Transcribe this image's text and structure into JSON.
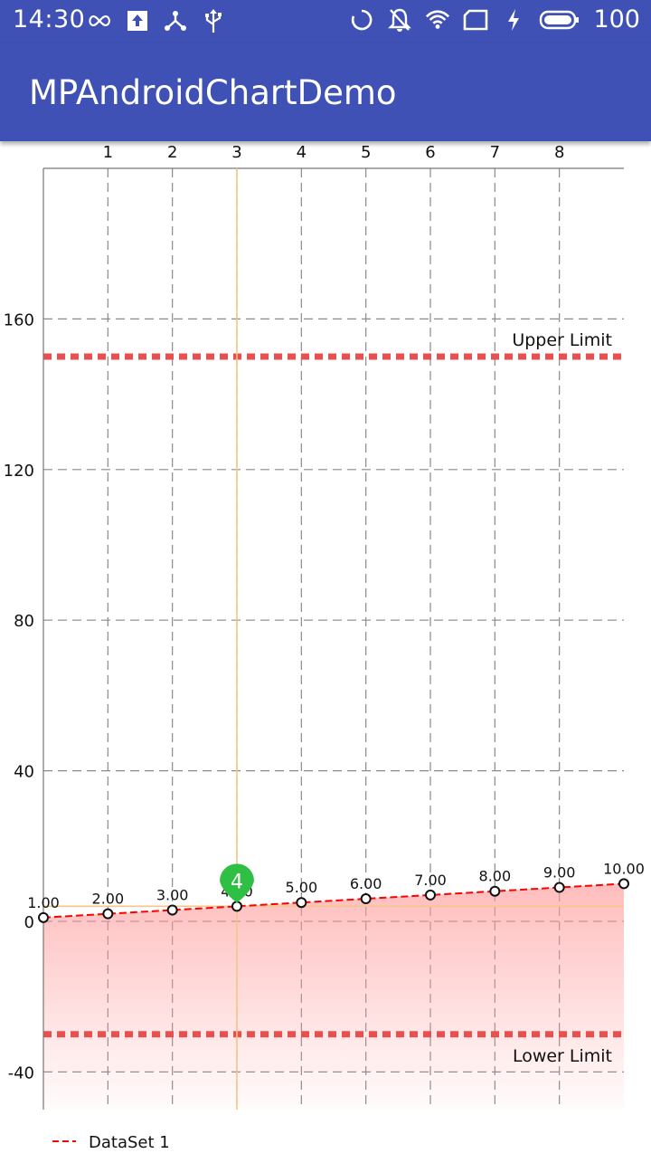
{
  "status_bar": {
    "time": "14:30",
    "battery_level": "100",
    "left_icons": [
      "infinity-icon",
      "upload-icon",
      "share-network-icon",
      "usb-icon"
    ],
    "right_icons": [
      "sync-icon",
      "notifications-off-icon",
      "wifi-icon",
      "sim-card-icon",
      "charging-icon",
      "battery-icon"
    ]
  },
  "app_bar": {
    "title": "MPAndroidChartDemo"
  },
  "chart_data": {
    "type": "line",
    "x": [
      0,
      1,
      2,
      3,
      4,
      5,
      6,
      7,
      8,
      9
    ],
    "x_tick_labels": [
      "1",
      "2",
      "3",
      "4",
      "5",
      "6",
      "7",
      "8"
    ],
    "x_tick_positions": [
      1,
      2,
      3,
      4,
      5,
      6,
      7,
      8
    ],
    "xlim": [
      0,
      9
    ],
    "ylim": [
      -50,
      200
    ],
    "y_tick_values": [
      -40,
      0,
      40,
      80,
      120,
      160
    ],
    "y_tick_labels": [
      "-40",
      "0",
      "40",
      "80",
      "120",
      "160"
    ],
    "grid": true,
    "series": [
      {
        "name": "DataSet 1",
        "values": [
          1,
          2,
          3,
          4,
          5,
          6,
          7,
          8,
          9,
          10
        ],
        "value_labels": [
          "1.00",
          "2.00",
          "3.00",
          "4.00",
          "5.00",
          "6.00",
          "7.00",
          "8.00",
          "9.00",
          "10.00"
        ],
        "line_color": "#ff0000",
        "fill_color": "#ff9999",
        "line_style": "dashed"
      }
    ],
    "limit_lines": [
      {
        "label": "Upper Limit",
        "value": 150,
        "color": "#e85050"
      },
      {
        "label": "Lower Limit",
        "value": -30,
        "color": "#e85050"
      }
    ],
    "highlight": {
      "index": 3,
      "marker_label": "4",
      "marker_color": "#2fbf45",
      "line_color": "#f5c78a"
    },
    "legend": {
      "position": "bottom-left",
      "entries": [
        "DataSet 1"
      ]
    }
  }
}
